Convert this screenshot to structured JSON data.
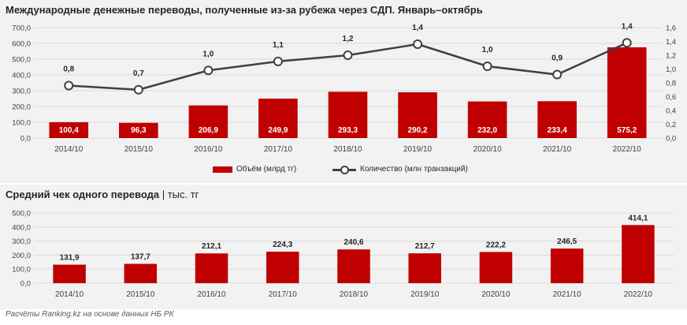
{
  "header": {
    "title": "Международные денежные переводы, полученные из-за рубежа через СДП. Январь–октябрь",
    "title2_bold": "Средний чек одного перевода",
    "title2_rest": " | тыс. тг",
    "source": "Расчёты Ranking.kz на основе данных НБ РК"
  },
  "colors": {
    "bar": "#c00000",
    "line": "#404040",
    "panel": "#f2f2f2"
  },
  "chart_data": [
    {
      "type": "bar",
      "categories": [
        "2014/10",
        "2015/10",
        "2016/10",
        "2017/10",
        "2018/10",
        "2019/10",
        "2020/10",
        "2021/10",
        "2022/10"
      ],
      "series": [
        {
          "name": "Объём (млрд тг)",
          "type": "bar",
          "axis": "left",
          "values": [
            100.4,
            96.3,
            206.9,
            249.9,
            293.3,
            290.2,
            232.0,
            233.4,
            575.2
          ],
          "labels": [
            "100,4",
            "96,3",
            "206,9",
            "249,9",
            "293,3",
            "290,2",
            "232,0",
            "233,4",
            "575,2"
          ]
        },
        {
          "name": "Количество (млн транзакций)",
          "type": "line",
          "axis": "right",
          "values": [
            0.76,
            0.7,
            0.98,
            1.11,
            1.2,
            1.36,
            1.04,
            0.92,
            1.38
          ],
          "labels": [
            "0,8",
            "0,7",
            "1,0",
            "1,1",
            "1,2",
            "1,4",
            "1,0",
            "0,9",
            "1,4"
          ]
        }
      ],
      "ylim": [
        0,
        700
      ],
      "yticks": [
        "0,0",
        "100,0",
        "200,0",
        "300,0",
        "400,0",
        "500,0",
        "600,0",
        "700,0"
      ],
      "y2lim": [
        0,
        1.6
      ],
      "y2ticks": [
        "0,0",
        "0,2",
        "0,4",
        "0,6",
        "0,8",
        "1,0",
        "1,2",
        "1,4",
        "1,6"
      ],
      "grid": true,
      "legend": "bottom"
    },
    {
      "type": "bar",
      "categories": [
        "2014/10",
        "2015/10",
        "2016/10",
        "2017/10",
        "2018/10",
        "2019/10",
        "2020/10",
        "2021/10",
        "2022/10"
      ],
      "series": [
        {
          "values": [
            131.9,
            137.7,
            212.1,
            224.3,
            240.6,
            212.7,
            222.2,
            246.5,
            414.1
          ],
          "labels": [
            "131,9",
            "137,7",
            "212,1",
            "224,3",
            "240,6",
            "212,7",
            "222,2",
            "246,5",
            "414,1"
          ]
        }
      ],
      "ylim": [
        0,
        500
      ],
      "yticks": [
        "0,0",
        "100,0",
        "200,0",
        "300,0",
        "400,0",
        "500,0"
      ],
      "grid": true
    }
  ]
}
